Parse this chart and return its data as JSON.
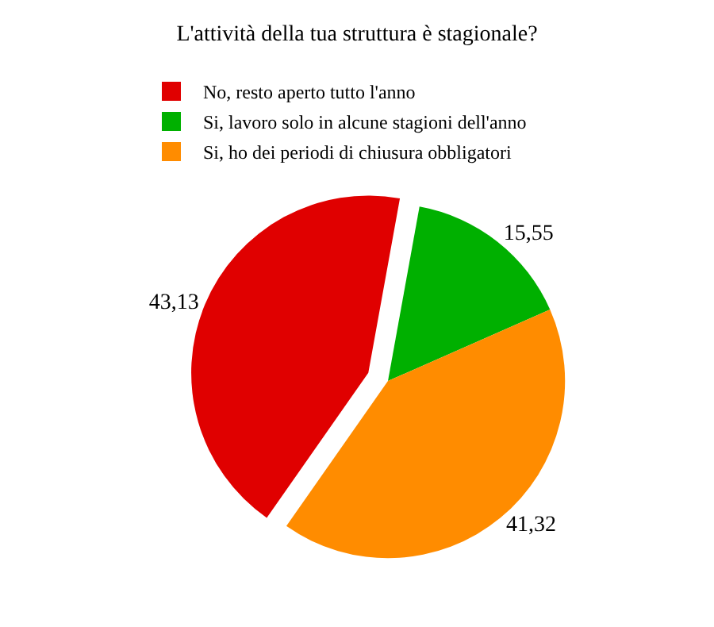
{
  "chart_data": {
    "type": "pie",
    "title": "L'attività della tua struttura è stagionale?",
    "categories": [
      "No, resto aperto tutto l'anno",
      "Si, lavoro solo in alcune stagioni dell'anno",
      "Si, ho dei periodi di chiusura obbligatori"
    ],
    "values": [
      43.13,
      15.55,
      41.32
    ],
    "value_labels": [
      "43,13",
      "15,55",
      "41,32"
    ],
    "colors": [
      "#e00000",
      "#00b000",
      "#ff8c00"
    ],
    "legend": "top"
  }
}
